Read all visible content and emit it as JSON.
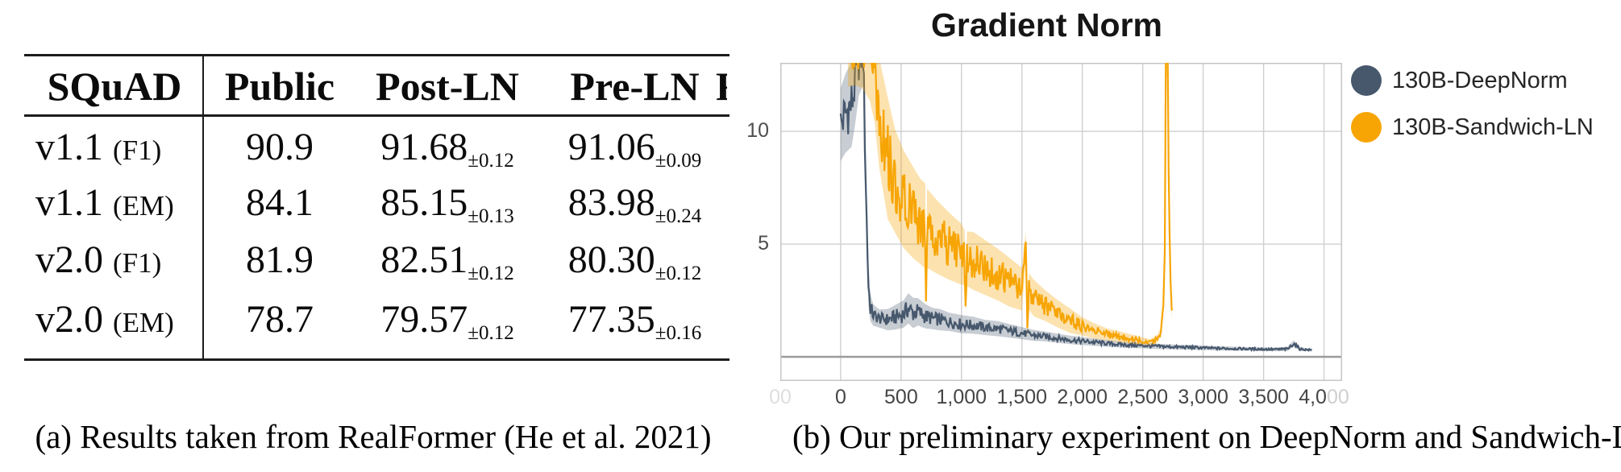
{
  "figure": {
    "caption_a": "(a) Results taken from RealFormer (He et al. 2021)",
    "caption_b": "(b) Our preliminary experiment on DeepNorm and Sandwich-LN"
  },
  "table": {
    "corner_header": "SQuAD",
    "column_headers": [
      "Public",
      "Post-LN",
      "Pre-LN"
    ],
    "clipped_header_fragment": "R",
    "rows": [
      {
        "version": "v1.1",
        "metric": "(F1)",
        "public": "90.9",
        "post_ln": "91.68",
        "post_ln_std": "±0.12",
        "pre_ln": "91.06",
        "pre_ln_std": "±0.09"
      },
      {
        "version": "v1.1",
        "metric": "(EM)",
        "public": "84.1",
        "post_ln": "85.15",
        "post_ln_std": "±0.13",
        "pre_ln": "83.98",
        "pre_ln_std": "±0.24"
      },
      {
        "version": "v2.0",
        "metric": "(F1)",
        "public": "81.9",
        "post_ln": "82.51",
        "post_ln_std": "±0.12",
        "pre_ln": "80.30",
        "pre_ln_std": "±0.12"
      },
      {
        "version": "v2.0",
        "metric": "(EM)",
        "public": "78.7",
        "post_ln": "79.57",
        "post_ln_std": "±0.12",
        "pre_ln": "77.35",
        "pre_ln_std": "±0.16"
      }
    ]
  },
  "chart_data": {
    "type": "line",
    "title": "Gradient Norm",
    "xlabel": "",
    "ylabel": "",
    "xlim": [
      -500,
      4150
    ],
    "ylim": [
      -1.07,
      13.04
    ],
    "grid": true,
    "legend_position": "right",
    "grid_color": "#cfcfcf",
    "zero_line_color": "#9b9b9b",
    "border_color": "#c6c6c6",
    "x_ticks": [
      {
        "value": -500,
        "label": "00",
        "style": "faded"
      },
      {
        "value": 0,
        "label": "0"
      },
      {
        "value": 500,
        "label": "500"
      },
      {
        "value": 1000,
        "label": "1,000"
      },
      {
        "value": 1500,
        "label": "1,500"
      },
      {
        "value": 2000,
        "label": "2,000"
      },
      {
        "value": 2500,
        "label": "2,500"
      },
      {
        "value": 3000,
        "label": "3,000"
      },
      {
        "value": 3500,
        "label": "3,500"
      },
      {
        "value": 4000,
        "label": "4,000",
        "fade_from": 3
      }
    ],
    "y_ticks": [
      {
        "value": 5,
        "label": "5"
      },
      {
        "value": 10,
        "label": "10"
      }
    ],
    "series": [
      {
        "name": "130B-DeepNorm",
        "color": "#47586d",
        "band_opacity": 0.3,
        "points": [
          [
            0,
            10.3,
            1.2
          ],
          [
            40,
            10.8,
            1.3
          ],
          [
            90,
            11.2,
            1.4
          ],
          [
            120,
            12.2,
            1.4
          ],
          [
            150,
            13.2,
            1.2
          ],
          [
            185,
            13.4,
            1.0
          ],
          [
            200,
            10,
            1.5
          ],
          [
            215,
            6,
            1.2
          ],
          [
            230,
            3.2,
            0.7
          ],
          [
            245,
            2.2,
            0.45
          ],
          [
            270,
            1.85,
            0.35
          ],
          [
            320,
            1.7,
            0.3
          ],
          [
            390,
            1.65,
            0.35
          ],
          [
            450,
            1.75,
            0.4
          ],
          [
            520,
            1.9,
            0.45
          ],
          [
            560,
            2.15,
            0.5
          ],
          [
            600,
            1.95,
            0.5
          ],
          [
            640,
            2.0,
            0.45
          ],
          [
            700,
            1.8,
            0.4
          ],
          [
            760,
            1.7,
            0.35
          ],
          [
            820,
            1.65,
            0.35
          ],
          [
            900,
            1.55,
            0.3
          ],
          [
            1000,
            1.45,
            0.3
          ],
          [
            1100,
            1.4,
            0.28
          ],
          [
            1200,
            1.3,
            0.25
          ],
          [
            1300,
            1.25,
            0.25
          ],
          [
            1400,
            1.15,
            0.22
          ],
          [
            1500,
            1.05,
            0.2
          ],
          [
            1600,
            0.95,
            0.18
          ],
          [
            1700,
            0.9,
            0.16
          ],
          [
            1800,
            0.82,
            0.15
          ],
          [
            1900,
            0.75,
            0.14
          ],
          [
            2000,
            0.7,
            0.13
          ],
          [
            2100,
            0.65,
            0.12
          ],
          [
            2200,
            0.6,
            0.11
          ],
          [
            2300,
            0.55,
            0.1
          ],
          [
            2400,
            0.52,
            0.1
          ],
          [
            2500,
            0.5,
            0.09
          ],
          [
            2600,
            0.47,
            0.09
          ],
          [
            2700,
            0.45,
            0.08
          ],
          [
            2800,
            0.43,
            0.08
          ],
          [
            2900,
            0.42,
            0.08
          ],
          [
            3000,
            0.4,
            0.07
          ],
          [
            3100,
            0.38,
            0.07
          ],
          [
            3200,
            0.37,
            0.07
          ],
          [
            3300,
            0.36,
            0.06
          ],
          [
            3400,
            0.35,
            0.06
          ],
          [
            3500,
            0.34,
            0.06
          ],
          [
            3600,
            0.33,
            0.06
          ],
          [
            3700,
            0.35,
            0.07
          ],
          [
            3750,
            0.6,
            0.1
          ],
          [
            3800,
            0.35,
            0.06
          ],
          [
            3850,
            0.32,
            0.05
          ],
          [
            3900,
            0.3,
            0.05
          ]
        ]
      },
      {
        "name": "130B-Sandwich-LN",
        "color": "#f7a505",
        "band_opacity": 0.32,
        "points": [
          [
            60,
            13.6,
            1.2
          ],
          [
            120,
            13.8,
            1.3
          ],
          [
            180,
            13.8,
            1.4
          ],
          [
            240,
            13.4,
            1.5
          ],
          [
            280,
            12.6,
            1.6
          ],
          [
            320,
            10.8,
            1.8
          ],
          [
            390,
            8.8,
            2.0
          ],
          [
            450,
            7.8,
            1.7
          ],
          [
            520,
            7.0,
            1.6
          ],
          [
            600,
            6.4,
            1.5
          ],
          [
            660,
            6.0,
            1.4
          ],
          [
            700,
            5.8,
            1.4
          ],
          [
            706,
            2.7,
            0.3
          ],
          [
            715,
            5.7,
            1.3
          ],
          [
            800,
            5.3,
            1.2
          ],
          [
            900,
            4.9,
            1.1
          ],
          [
            1000,
            4.55,
            1.0
          ],
          [
            1026,
            4.4,
            0.9
          ],
          [
            1034,
            2.4,
            0.3
          ],
          [
            1045,
            4.35,
            0.9
          ],
          [
            1100,
            4.25,
            0.95
          ],
          [
            1200,
            3.95,
            0.9
          ],
          [
            1300,
            3.65,
            0.85
          ],
          [
            1400,
            3.3,
            0.8
          ],
          [
            1500,
            3.0,
            0.7
          ],
          [
            1532,
            4.9,
            0.5
          ],
          [
            1545,
            1.2,
            0.3
          ],
          [
            1558,
            2.9,
            0.6
          ],
          [
            1600,
            2.6,
            0.6
          ],
          [
            1700,
            2.25,
            0.5
          ],
          [
            1800,
            1.9,
            0.45
          ],
          [
            1900,
            1.6,
            0.4
          ],
          [
            2000,
            1.35,
            0.3
          ],
          [
            2100,
            1.15,
            0.25
          ],
          [
            2200,
            1.0,
            0.2
          ],
          [
            2300,
            0.9,
            0.18
          ],
          [
            2400,
            0.8,
            0.15
          ],
          [
            2500,
            0.7,
            0.12
          ],
          [
            2560,
            0.65,
            0.1
          ],
          [
            2620,
            0.8,
            0.12
          ],
          [
            2650,
            1.1,
            0.15
          ],
          [
            2670,
            2.2,
            0.3
          ],
          [
            2682,
            5.0,
            0.8
          ],
          [
            2692,
            14,
            1.2
          ],
          [
            2706,
            14,
            1.2
          ],
          [
            2714,
            8,
            0.8
          ],
          [
            2722,
            5,
            0.5
          ],
          [
            2730,
            3.2,
            0.35
          ],
          [
            2740,
            1.9,
            0.2
          ]
        ]
      }
    ]
  }
}
